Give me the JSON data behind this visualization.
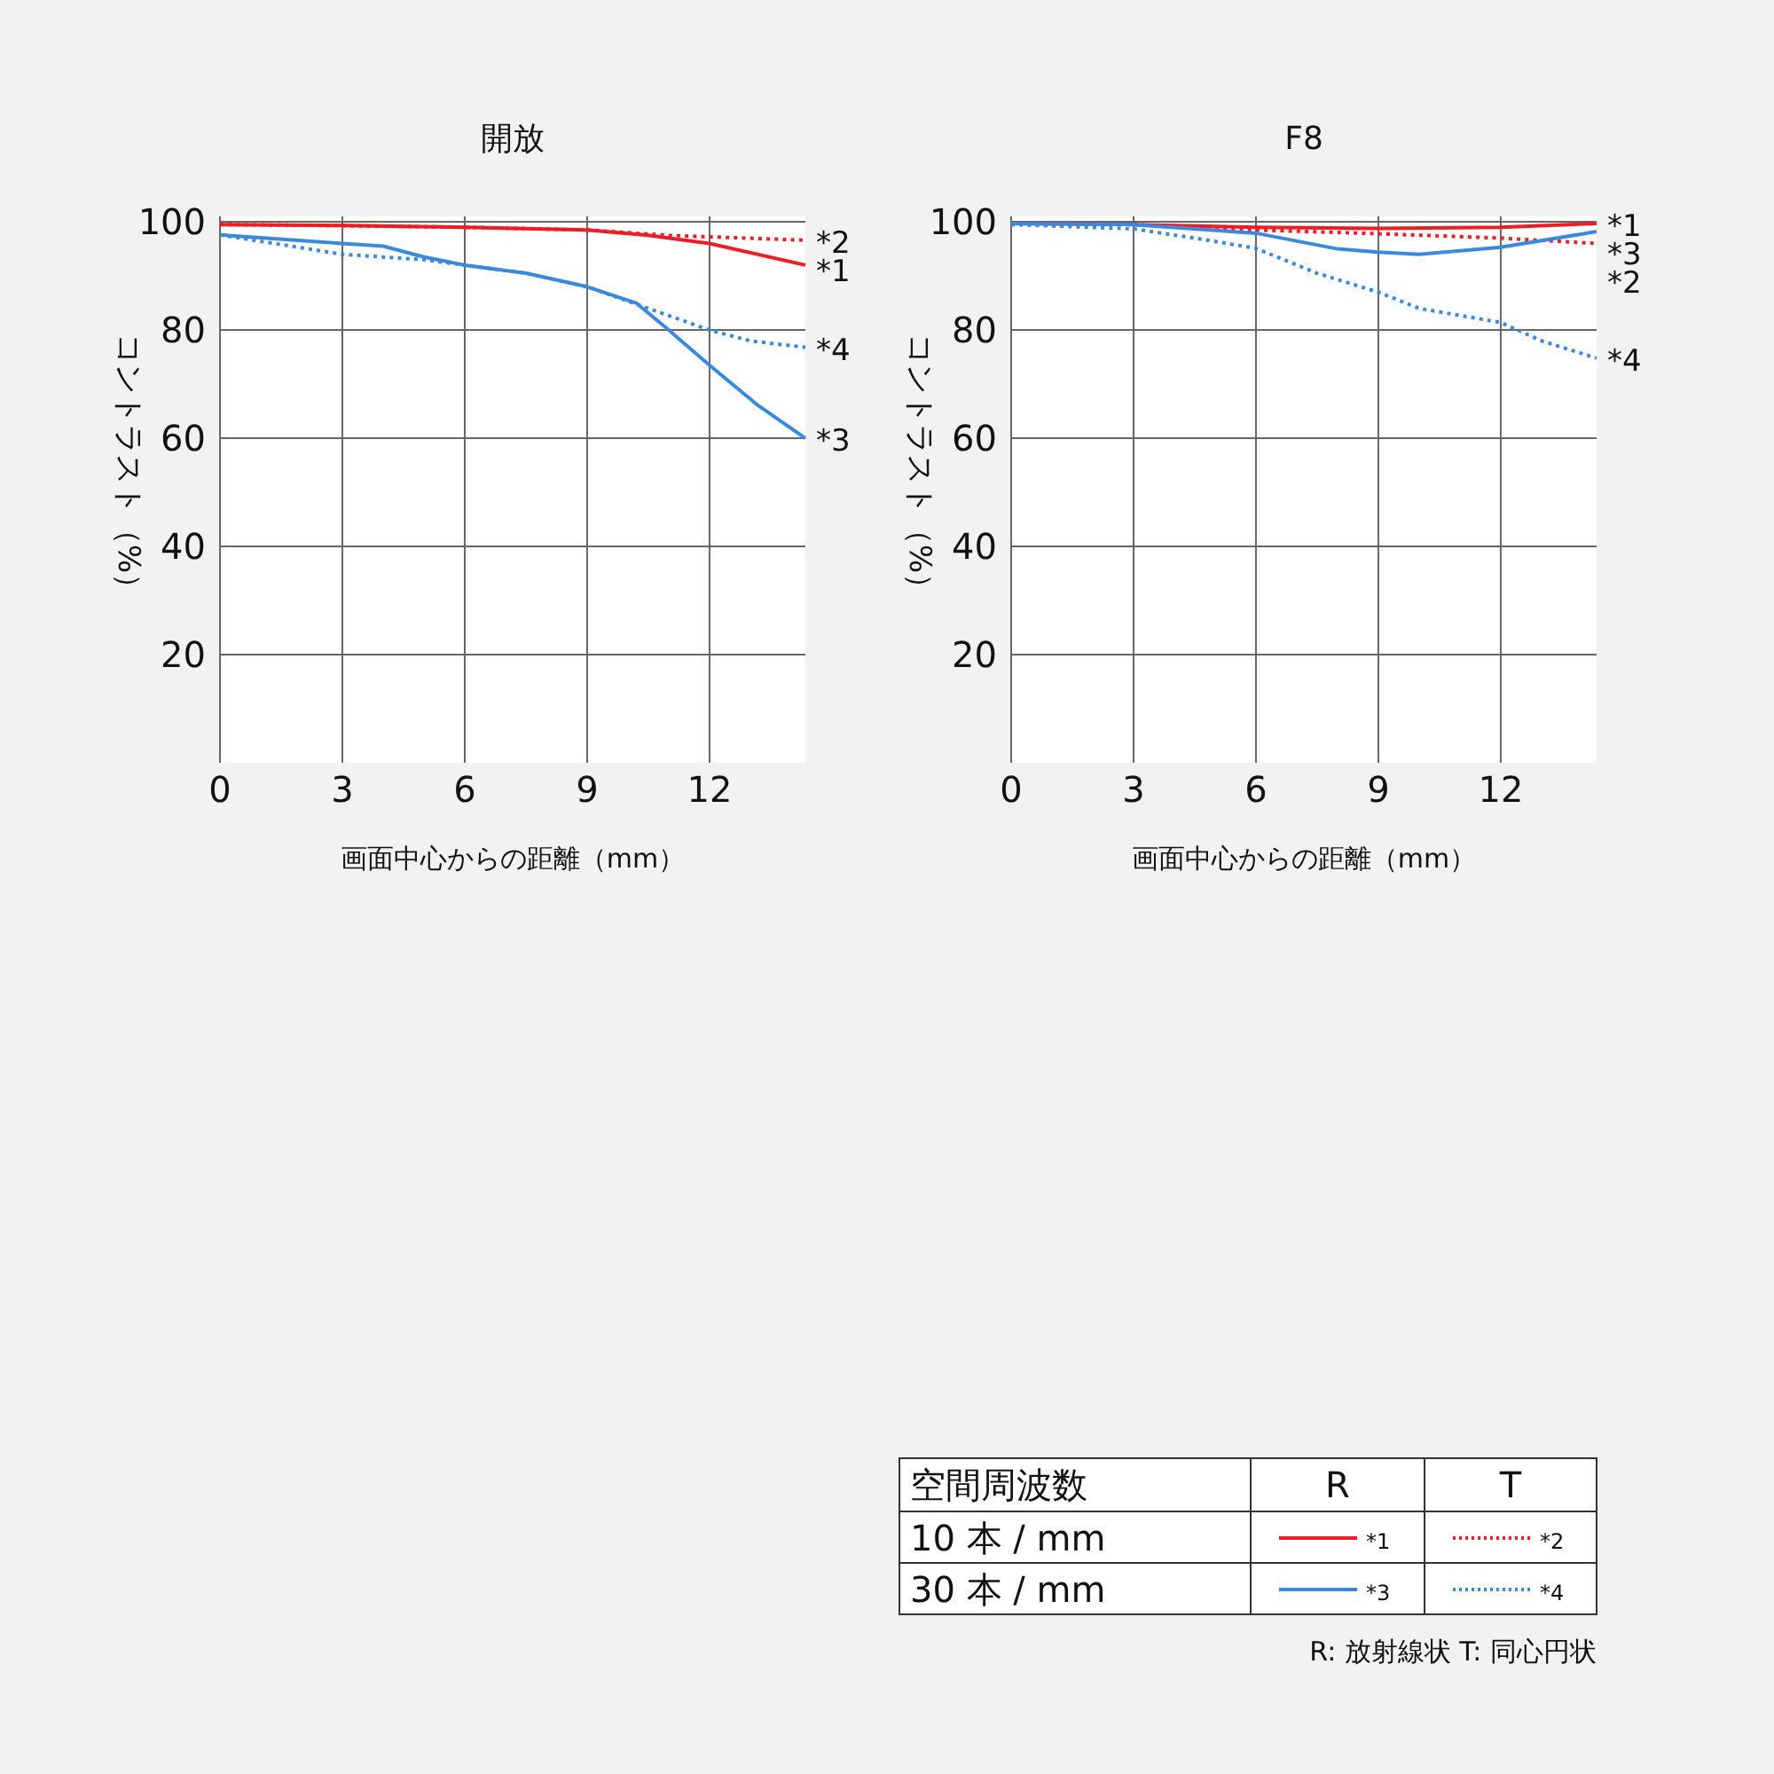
{
  "chart_data": [
    {
      "type": "line",
      "title": "開放",
      "xlabel": "画面中心からの距離（mm）",
      "ylabel": "コントラスト（%）",
      "xlim": [
        0,
        14.35
      ],
      "ylim": [
        0,
        101
      ],
      "xticks": [
        0,
        3,
        6,
        9,
        12
      ],
      "yticks": [
        20,
        40,
        60,
        80,
        100
      ],
      "grid": true,
      "marker": "none",
      "series": [
        {
          "name": "*1",
          "color": "#ee1c25",
          "line_style": "solid",
          "x": [
            0,
            3,
            6,
            9,
            10.5,
            12,
            14.35
          ],
          "values": [
            99.5,
            99.3,
            99,
            98.5,
            97.5,
            96,
            92
          ]
        },
        {
          "name": "*2",
          "color": "#ee1c25",
          "line_style": "dotted",
          "x": [
            0,
            3,
            6,
            9,
            11,
            14.35
          ],
          "values": [
            99.5,
            99.3,
            99,
            98.5,
            97.5,
            96.6
          ]
        },
        {
          "name": "*3",
          "color": "#3a89dc",
          "line_style": "solid",
          "x": [
            0,
            3,
            4,
            5,
            6,
            7.5,
            9,
            10.2,
            11,
            12,
            13.2,
            14.35
          ],
          "values": [
            97.6,
            96,
            95.5,
            93.5,
            92,
            90.5,
            88,
            85,
            80,
            73.5,
            66,
            60
          ]
        },
        {
          "name": "*4",
          "color": "#3a89dc",
          "line_style": "dotted",
          "x": [
            0,
            3,
            5,
            6,
            7.5,
            9,
            10.5,
            12,
            13,
            14.35
          ],
          "values": [
            97.6,
            94,
            93,
            92,
            90.5,
            88,
            84,
            80,
            78,
            76.8
          ]
        }
      ]
    },
    {
      "type": "line",
      "title": "F8",
      "xlabel": "画面中心からの距離（mm）",
      "ylabel": "コントラスト（%）",
      "xlim": [
        0,
        14.35
      ],
      "ylim": [
        0,
        101
      ],
      "xticks": [
        0,
        3,
        6,
        9,
        12
      ],
      "yticks": [
        20,
        40,
        60,
        80,
        100
      ],
      "grid": true,
      "marker": "none",
      "series": [
        {
          "name": "*1",
          "color": "#ee1c25",
          "line_style": "solid",
          "x": [
            0,
            3,
            6,
            9,
            12,
            14.35
          ],
          "values": [
            99.7,
            99.5,
            99,
            98.8,
            99,
            99.7
          ]
        },
        {
          "name": "*2",
          "color": "#ee1c25",
          "line_style": "dotted",
          "x": [
            0,
            3,
            6,
            9,
            12,
            14.35
          ],
          "values": [
            99.7,
            99.5,
            98.5,
            97.8,
            97,
            96
          ]
        },
        {
          "name": "*3",
          "color": "#3a89dc",
          "line_style": "solid",
          "x": [
            0,
            3,
            6,
            8,
            9,
            10,
            12,
            14.35
          ],
          "values": [
            99.7,
            99.5,
            97.9,
            95,
            94.4,
            94,
            95.3,
            98.2
          ]
        },
        {
          "name": "*4",
          "color": "#3a89dc",
          "line_style": "dotted",
          "x": [
            0,
            3,
            4.5,
            6,
            7.5,
            9,
            10,
            12,
            13,
            14.35
          ],
          "values": [
            99.5,
            98.7,
            97,
            95.1,
            90.5,
            87,
            84,
            81.4,
            78,
            74.8
          ]
        }
      ]
    },
    {
      "type": "other",
      "annotations": [
        "空間周波数",
        "R",
        "T",
        "10 本 / mm",
        "30 本 / mm",
        "R: 放射線状  T: 同心円状"
      ]
    }
  ]
}
